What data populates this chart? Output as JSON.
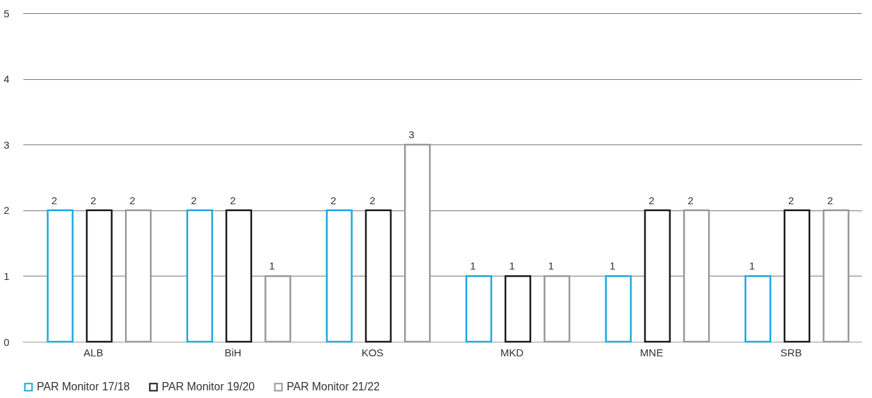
{
  "chart_data": {
    "type": "bar",
    "categories": [
      "ALB",
      "BiH",
      "KOS",
      "MKD",
      "MNE",
      "SRB"
    ],
    "series": [
      {
        "name": "PAR Monitor 17/18",
        "color": "#1aa8e0",
        "values": [
          2,
          2,
          2,
          1,
          1,
          1
        ]
      },
      {
        "name": "PAR Monitor 19/20",
        "color": "#1a1a1a",
        "values": [
          2,
          2,
          2,
          1,
          2,
          2
        ]
      },
      {
        "name": "PAR Monitor 21/22",
        "color": "#999999",
        "values": [
          2,
          1,
          3,
          1,
          2,
          2
        ]
      }
    ],
    "ylim": [
      0,
      5
    ],
    "yticks": [
      0,
      1,
      2,
      3,
      4,
      5
    ],
    "grid": "y",
    "legend": "bottom",
    "data_labels": true
  }
}
